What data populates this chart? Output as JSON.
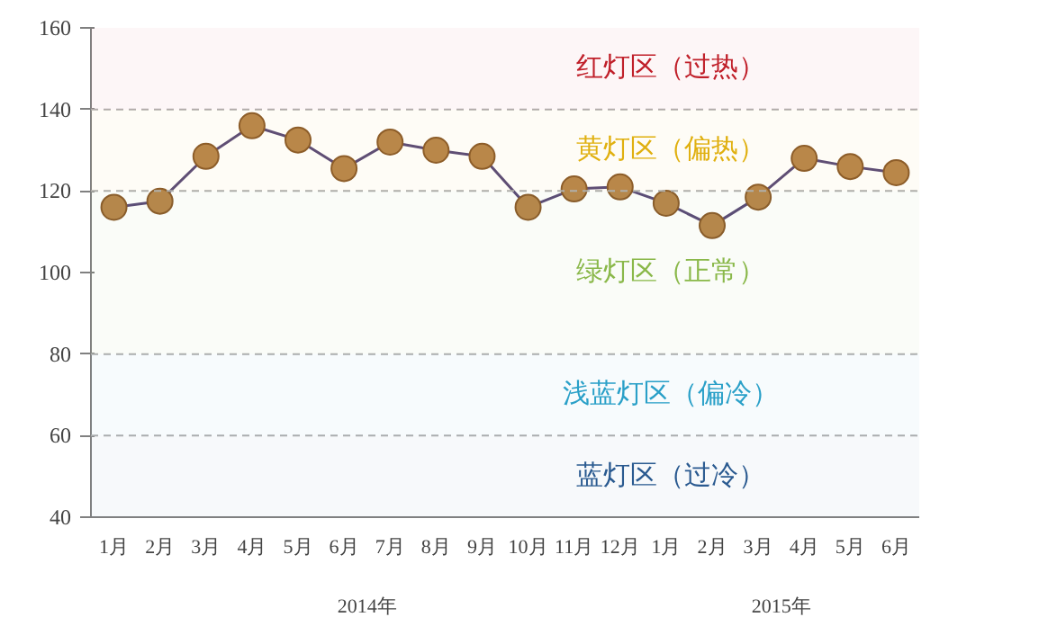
{
  "chart_data": {
    "type": "line",
    "categories": [
      "1月",
      "2月",
      "3月",
      "4月",
      "5月",
      "6月",
      "7月",
      "8月",
      "9月",
      "10月",
      "11月",
      "12月",
      "1月",
      "2月",
      "3月",
      "4月",
      "5月",
      "6月"
    ],
    "series": [
      {
        "color": "#b8864b",
        "values": [
          116,
          117.5,
          128.5,
          136,
          132.5,
          125.5,
          132,
          130,
          128.5,
          116,
          120.5,
          121,
          117,
          111.5,
          118.5,
          128,
          126,
          124.5
        ]
      }
    ],
    "ylim": [
      40,
      160
    ],
    "yticks": [
      40,
      60,
      80,
      100,
      120,
      140,
      160
    ],
    "marker": "circle",
    "line_style": "solid",
    "ref_lines": [
      {
        "axis": "y",
        "value": 60,
        "color": "#b0b0b0",
        "line_style": "dashed"
      },
      {
        "axis": "y",
        "value": 80,
        "color": "#b0b0b0",
        "line_style": "dashed"
      },
      {
        "axis": "y",
        "value": 120,
        "color": "#b0b0b0",
        "line_style": "dashed"
      },
      {
        "axis": "y",
        "value": 140,
        "color": "#b0b0b0",
        "line_style": "dashed"
      }
    ],
    "bands": [
      {
        "axis": "y",
        "from": 140,
        "to": 160,
        "label": "红灯区（过热）",
        "color": "#c0202a"
      },
      {
        "axis": "y",
        "from": 120,
        "to": 140,
        "label": "黄灯区（偏热）",
        "color": "#e0b010"
      },
      {
        "axis": "y",
        "from": 80,
        "to": 120,
        "label": "绿灯区（正常）",
        "color": "#8ab84a"
      },
      {
        "axis": "y",
        "from": 60,
        "to": 80,
        "label": "浅蓝灯区（偏冷）",
        "color": "#2aa0c8"
      },
      {
        "axis": "y",
        "from": 40,
        "to": 60,
        "label": "蓝灯区（过冷）",
        "color": "#2a5a90"
      }
    ],
    "annotations": [
      "2014年",
      "2015年"
    ]
  }
}
